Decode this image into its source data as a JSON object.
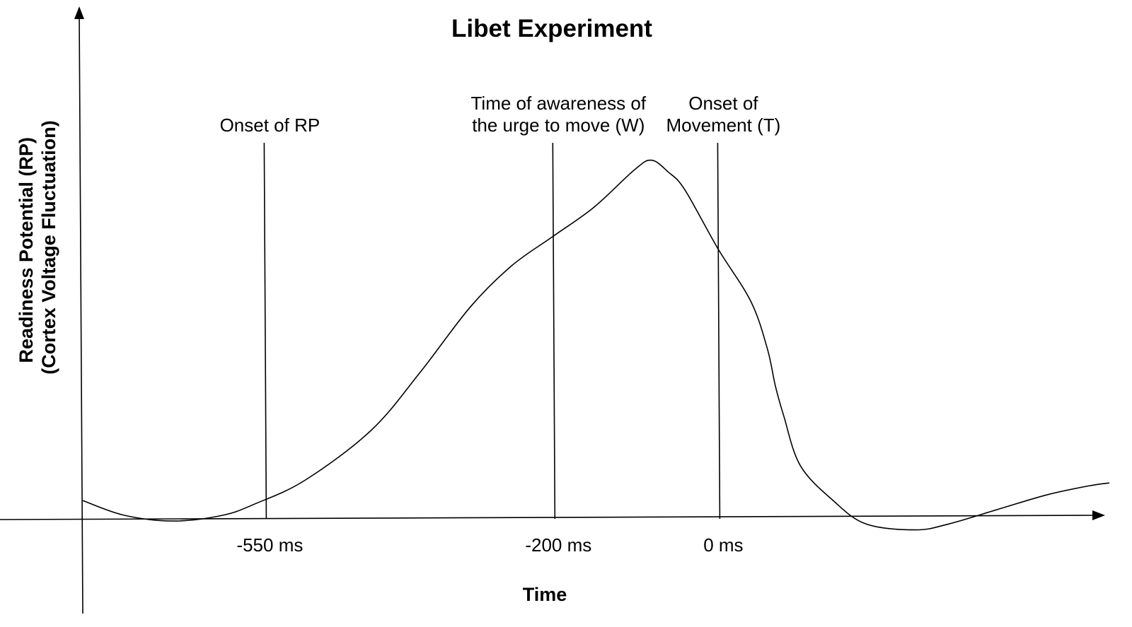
{
  "chart_data": {
    "type": "line",
    "title": "Libet Experiment",
    "xlabel": "Time",
    "ylabel": [
      "Readiness Potential (RP)",
      "(Cortex Voltage Fluctuation)"
    ],
    "x_ticks": [
      {
        "value": -550,
        "label": "-550 ms"
      },
      {
        "value": -200,
        "label": "-200 ms"
      },
      {
        "value": 0,
        "label": "0 ms"
      }
    ],
    "markers": [
      {
        "x": -550,
        "label_lines": [
          "Onset of RP"
        ]
      },
      {
        "x": -200,
        "label_lines": [
          "Time of awareness of",
          "the urge to move (W)"
        ]
      },
      {
        "x": 0,
        "label_lines": [
          "Onset of",
          "Movement (T)"
        ]
      }
    ],
    "xlim": [
      -770,
      475
    ],
    "ylim": [
      -0.08,
      1.33
    ],
    "grid": false,
    "legend": "none",
    "series": [
      {
        "x": [
          -770,
          -720,
          -660,
          -600,
          -560,
          -500,
          -420,
          -360,
          -300,
          -250,
          -200,
          -150,
          -100,
          -80,
          -60,
          -40,
          0,
          40,
          60,
          70,
          80,
          100,
          140,
          180,
          240,
          280,
          340,
          400,
          450,
          475
        ],
        "y": [
          0.06,
          0.01,
          -0.01,
          0.01,
          0.05,
          0.13,
          0.3,
          0.5,
          0.72,
          0.86,
          0.96,
          1.06,
          1.19,
          1.22,
          1.18,
          1.12,
          0.92,
          0.74,
          0.58,
          0.45,
          0.35,
          0.18,
          0.06,
          -0.02,
          -0.04,
          -0.02,
          0.03,
          0.08,
          0.11,
          0.12
        ]
      }
    ]
  }
}
